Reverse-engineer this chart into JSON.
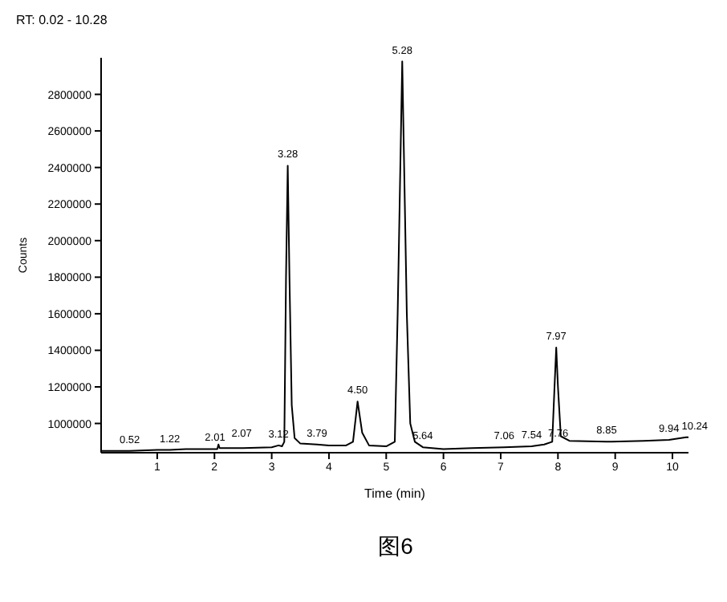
{
  "chart_data": {
    "type": "line",
    "xlabel": "Time (min)",
    "ylabel": "Counts",
    "x": [
      0.02,
      0.52,
      1.0,
      1.22,
      1.5,
      2.01,
      2.05,
      2.07,
      2.09,
      2.5,
      3.0,
      3.12,
      3.18,
      3.22,
      3.25,
      3.28,
      3.31,
      3.35,
      3.4,
      3.5,
      3.79,
      4.0,
      4.3,
      4.42,
      4.5,
      4.58,
      4.7,
      5.0,
      5.15,
      5.2,
      5.28,
      5.36,
      5.42,
      5.5,
      5.64,
      6.0,
      6.5,
      7.06,
      7.54,
      7.76,
      7.9,
      7.94,
      7.97,
      8.0,
      8.05,
      8.2,
      8.85,
      9.5,
      9.94,
      10.24,
      10.28
    ],
    "series": [
      {
        "color": "#000000",
        "values": [
          850000,
          850000,
          855000,
          855000,
          860000,
          860000,
          860000,
          885000,
          865000,
          865000,
          870000,
          880000,
          875000,
          900000,
          1800000,
          2410000,
          1800000,
          1100000,
          920000,
          890000,
          885000,
          880000,
          880000,
          900000,
          1120000,
          950000,
          880000,
          875000,
          900000,
          1600000,
          2980000,
          1600000,
          1000000,
          900000,
          870000,
          860000,
          865000,
          870000,
          875000,
          885000,
          900000,
          1200000,
          1415000,
          1200000,
          930000,
          905000,
          900000,
          905000,
          910000,
          925000,
          925000
        ]
      }
    ],
    "xlim": [
      0.02,
      10.28
    ],
    "xticks": [
      1,
      2,
      3,
      4,
      5,
      6,
      7,
      8,
      9,
      10
    ],
    "ylim": [
      840000,
      3000000
    ],
    "yticks": [
      1000000,
      1200000,
      1400000,
      1600000,
      1800000,
      2000000,
      2200000,
      2400000,
      2600000,
      2800000
    ],
    "grid": false,
    "legend": false,
    "marker": "none",
    "line_style": "solid",
    "annotations": [
      "RT: 0.02 - 10.28",
      {
        "text": "0.52",
        "x": 0.52,
        "y": 850000
      },
      {
        "text": "1.22",
        "x": 1.22,
        "y": 855000
      },
      {
        "text": "2.01",
        "x": 2.01,
        "y": 860000
      },
      {
        "text": "2.07",
        "x": 2.07,
        "y": 885000
      },
      {
        "text": "3.12",
        "x": 3.12,
        "y": 880000
      },
      {
        "text": "3.28",
        "x": 3.28,
        "y": 2410000
      },
      {
        "text": "3.79",
        "x": 3.79,
        "y": 885000
      },
      {
        "text": "4.50",
        "x": 4.5,
        "y": 1120000
      },
      {
        "text": "5.28",
        "x": 5.28,
        "y": 2980000
      },
      {
        "text": "5.64",
        "x": 5.64,
        "y": 870000
      },
      {
        "text": "7.06",
        "x": 7.06,
        "y": 870000
      },
      {
        "text": "7.54",
        "x": 7.54,
        "y": 875000
      },
      {
        "text": "7.76",
        "x": 7.76,
        "y": 885000
      },
      {
        "text": "7.97",
        "x": 7.97,
        "y": 1415000
      },
      {
        "text": "8.85",
        "x": 8.85,
        "y": 900000
      },
      {
        "text": "9.94",
        "x": 9.94,
        "y": 910000
      },
      {
        "text": "10.24",
        "x": 10.24,
        "y": 925000
      },
      "图6"
    ]
  }
}
